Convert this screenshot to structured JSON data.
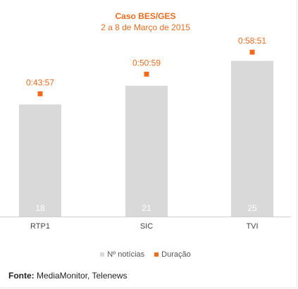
{
  "chart_data": {
    "type": "bar",
    "title": "Caso BES/GES",
    "subtitle": "2 a 8 de Março de 2015",
    "categories": [
      "RTP1",
      "SIC",
      "TVI"
    ],
    "series": [
      {
        "name": "Nº notícias",
        "type": "bar",
        "values": [
          18,
          21,
          25
        ],
        "color": "#d9d9d9"
      },
      {
        "name": "Duração",
        "type": "scatter",
        "values": [
          "0:43:57",
          "0:50:59",
          "0:58:51"
        ],
        "seconds": [
          2637,
          3059,
          3531
        ],
        "color": "#f26a1b"
      }
    ],
    "ylim": [
      0,
      28
    ],
    "grid": false,
    "legend": "bottom"
  },
  "source": {
    "label": "Fonte:",
    "text": "MediaMonitor, Telenews"
  }
}
